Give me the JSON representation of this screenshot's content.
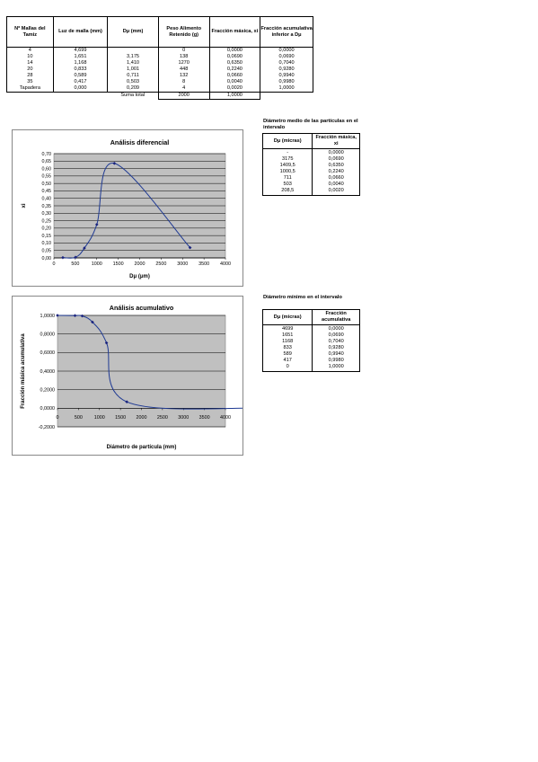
{
  "main_table": {
    "headers": [
      "Nº Mallas del Tamiz",
      "Luz de malla (mm)",
      "Dμ (mm)",
      "Peso Alimento Retenido (g)",
      "Fracción másica, xi",
      "Fracción acumulativa inferior a Dμ"
    ],
    "rows": [
      [
        "4",
        "4,699",
        "",
        "0",
        "0,0000",
        "0,0000"
      ],
      [
        "10",
        "1,651",
        "3,175",
        "138",
        "0,0690",
        "0,0690"
      ],
      [
        "14",
        "1,168",
        "1,410",
        "1270",
        "0,6350",
        "0,7040"
      ],
      [
        "20",
        "0,833",
        "1,001",
        "448",
        "0,2240",
        "0,9280"
      ],
      [
        "28",
        "0,589",
        "0,711",
        "132",
        "0,0660",
        "0,9940"
      ],
      [
        "35",
        "0,417",
        "0,503",
        "8",
        "0,0040",
        "0,9980"
      ],
      [
        "Tapadera",
        "0,000",
        "0,209",
        "4",
        "0,0020",
        "1,0000"
      ]
    ],
    "footer": {
      "label": "Suma total",
      "peso_total": "2000",
      "fraccion_total": "1,0000"
    }
  },
  "side_table_1": {
    "title": "Diámetro medio de las partículas en el intervalo",
    "headers": [
      "Dμ (micras)",
      "Fracción másica, xi"
    ],
    "rows": [
      [
        "-",
        "0,0000"
      ],
      [
        "3175",
        "0,0690"
      ],
      [
        "1409,5",
        "0,6350"
      ],
      [
        "1000,5",
        "0,2240"
      ],
      [
        "711",
        "0,0660"
      ],
      [
        "503",
        "0,0040"
      ],
      [
        "208,5",
        "0,0020"
      ]
    ]
  },
  "side_table_2": {
    "title": "Diámetro mínimo en el intervalo",
    "headers": [
      "Dμ (micras)",
      "Fracción acumulativa"
    ],
    "rows": [
      [
        "4699",
        "0,0000"
      ],
      [
        "1651",
        "0,0690"
      ],
      [
        "1168",
        "0,7040"
      ],
      [
        "833",
        "0,9280"
      ],
      [
        "589",
        "0,9940"
      ],
      [
        "417",
        "0,9980"
      ],
      [
        "0",
        "1,0000"
      ]
    ]
  },
  "chart_data": [
    {
      "type": "line",
      "title": "Análisis diferencial",
      "xlabel": "Dμ (μm)",
      "ylabel": "xi",
      "xlim": [
        0,
        4000
      ],
      "ylim": [
        0,
        0.7
      ],
      "x_ticks": [
        "0",
        "500",
        "1000",
        "1500",
        "2000",
        "2500",
        "3000",
        "3500",
        "4000"
      ],
      "y_ticks": [
        "0,00",
        "0,05",
        "0,10",
        "0,15",
        "0,20",
        "0,25",
        "0,30",
        "0,35",
        "0,40",
        "0,45",
        "0,50",
        "0,55",
        "0,60",
        "0,65",
        "0,70"
      ],
      "grid": true,
      "series": [
        {
          "x": [
            208.5,
            503,
            711,
            1000.5,
            1409.5,
            3175
          ],
          "y": [
            0.002,
            0.004,
            0.066,
            0.224,
            0.635,
            0.069
          ]
        }
      ],
      "colors": {
        "line": "#1f3a93",
        "plot_bg": "#c0c0c0"
      }
    },
    {
      "type": "line",
      "title": "Análisis acumulativo",
      "xlabel": "Diámetro de partícula (mm)",
      "ylabel": "Fracción másica acumulativa",
      "xlim": [
        0,
        4000
      ],
      "ylim": [
        -0.2,
        1.0
      ],
      "x_ticks": [
        "0",
        "500",
        "1000",
        "1500",
        "2000",
        "2500",
        "3000",
        "3500",
        "4000"
      ],
      "y_ticks": [
        "-0,2000",
        "0,0000",
        "0,2000",
        "0,4000",
        "0,6000",
        "0,8000",
        "1,0000"
      ],
      "grid": true,
      "series": [
        {
          "x": [
            0,
            417,
            589,
            833,
            1168,
            1651,
            4699
          ],
          "y": [
            1.0,
            0.998,
            0.994,
            0.928,
            0.704,
            0.069,
            0.0
          ]
        }
      ],
      "colors": {
        "line": "#1f3a93",
        "plot_bg": "#c0c0c0"
      }
    }
  ]
}
